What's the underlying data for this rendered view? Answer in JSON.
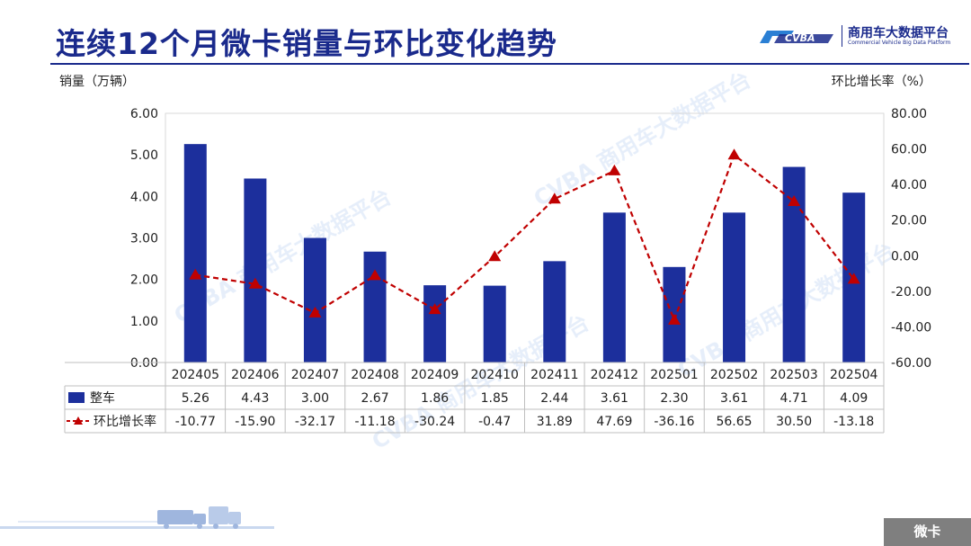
{
  "page": {
    "title": "连续12个月微卡销量与环比变化趋势",
    "footer_tag": "微卡"
  },
  "logo": {
    "mark_text": "CVBA",
    "name_cn": "商用车大数据平台",
    "name_en": "Commercial Vehicle Big Data Platform"
  },
  "colors": {
    "title": "#1a2a8c",
    "bar": "#1c2f9c",
    "line": "#c00000"
  },
  "chart_data": {
    "type": "bar",
    "categories": [
      "202405",
      "202406",
      "202407",
      "202408",
      "202409",
      "202410",
      "202411",
      "202412",
      "202501",
      "202502",
      "202503",
      "202504"
    ],
    "series": [
      {
        "name": "整车",
        "type": "bar",
        "axis": "left",
        "values": [
          5.26,
          4.43,
          3.0,
          2.67,
          1.86,
          1.85,
          2.44,
          3.61,
          2.3,
          3.61,
          4.71,
          4.09
        ],
        "labels": [
          "5.26",
          "4.43",
          "3.00",
          "2.67",
          "1.86",
          "1.85",
          "2.44",
          "3.61",
          "2.30",
          "3.61",
          "4.71",
          "4.09"
        ]
      },
      {
        "name": "环比增长率",
        "type": "line",
        "axis": "right",
        "values": [
          -10.77,
          -15.9,
          -32.17,
          -11.18,
          -30.24,
          -0.47,
          31.89,
          47.69,
          -36.16,
          56.65,
          30.5,
          -13.18
        ],
        "labels": [
          "-10.77",
          "-15.90",
          "-32.17",
          "-11.18",
          "-30.24",
          "-0.47",
          "31.89",
          "47.69",
          "-36.16",
          "56.65",
          "30.50",
          "-13.18"
        ]
      }
    ],
    "ylabel_left": "销量（万辆）",
    "ylabel_right": "环比增长率（%）",
    "ylim_left": [
      0,
      6
    ],
    "ylim_right": [
      -60,
      80
    ],
    "yticks_left": [
      "0.00",
      "1.00",
      "2.00",
      "3.00",
      "4.00",
      "5.00",
      "6.00"
    ],
    "yticks_right": [
      "-60.00",
      "-40.00",
      "-20.00",
      "0.00",
      "20.00",
      "40.00",
      "60.00",
      "80.00"
    ],
    "line_style": "dashed with triangle markers",
    "data_table": true,
    "grid": false
  }
}
